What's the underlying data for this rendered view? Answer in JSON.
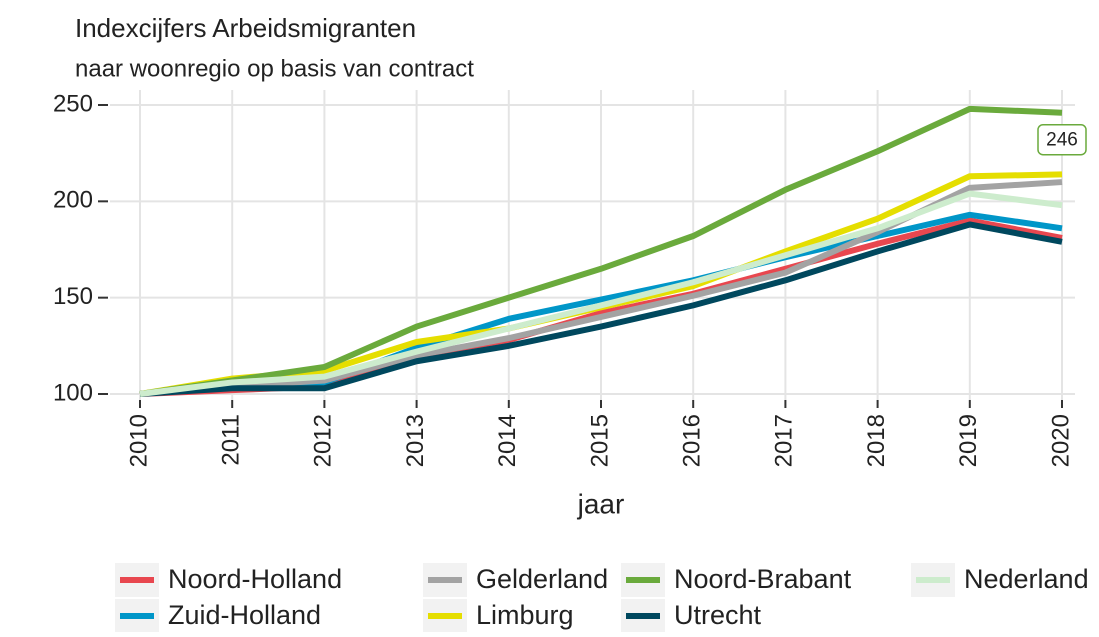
{
  "chart_data": {
    "type": "line",
    "title": "Indexcijfers Arbeidsmigranten",
    "subtitle": "naar woonregio op basis van contract",
    "x_label": "jaar",
    "x": [
      2010,
      2011,
      2012,
      2013,
      2014,
      2015,
      2016,
      2017,
      2018,
      2019,
      2020
    ],
    "xlim": [
      2010,
      2020
    ],
    "xticks": [
      2010,
      2011,
      2012,
      2013,
      2014,
      2015,
      2016,
      2017,
      2018,
      2019,
      2020
    ],
    "ylim": [
      100,
      250
    ],
    "yticks": [
      100,
      150,
      200,
      250
    ],
    "grid": true,
    "legend": "bottom",
    "series": [
      {
        "name": "Noord-Holland",
        "color": "#e8474f",
        "values": [
          100,
          102,
          104,
          120,
          128,
          142,
          152,
          165,
          178,
          190,
          181
        ]
      },
      {
        "name": "Zuid-Holland",
        "color": "#0096c8",
        "values": [
          100,
          104,
          106,
          124,
          139,
          149,
          159,
          171,
          182,
          193,
          186
        ]
      },
      {
        "name": "Gelderland",
        "color": "#a3a3a3",
        "values": [
          100,
          104,
          107,
          120,
          129,
          140,
          151,
          163,
          184,
          207,
          210
        ]
      },
      {
        "name": "Limburg",
        "color": "#e5de00",
        "values": [
          100,
          108,
          112,
          127,
          134,
          145,
          156,
          174,
          191,
          213,
          214
        ]
      },
      {
        "name": "Noord-Brabant",
        "color": "#6aaa3c",
        "values": [
          100,
          107,
          114,
          135,
          150,
          165,
          182,
          206,
          226,
          248,
          246
        ]
      },
      {
        "name": "Utrecht",
        "color": "#00485e",
        "values": [
          100,
          103,
          103,
          117,
          125,
          135,
          146,
          159,
          174,
          188,
          179
        ]
      },
      {
        "name": "Nederland",
        "color": "#cdeccd",
        "values": [
          100,
          106,
          109,
          122,
          134,
          146,
          158,
          172,
          186,
          204,
          198
        ]
      }
    ],
    "label_series": 4
  }
}
